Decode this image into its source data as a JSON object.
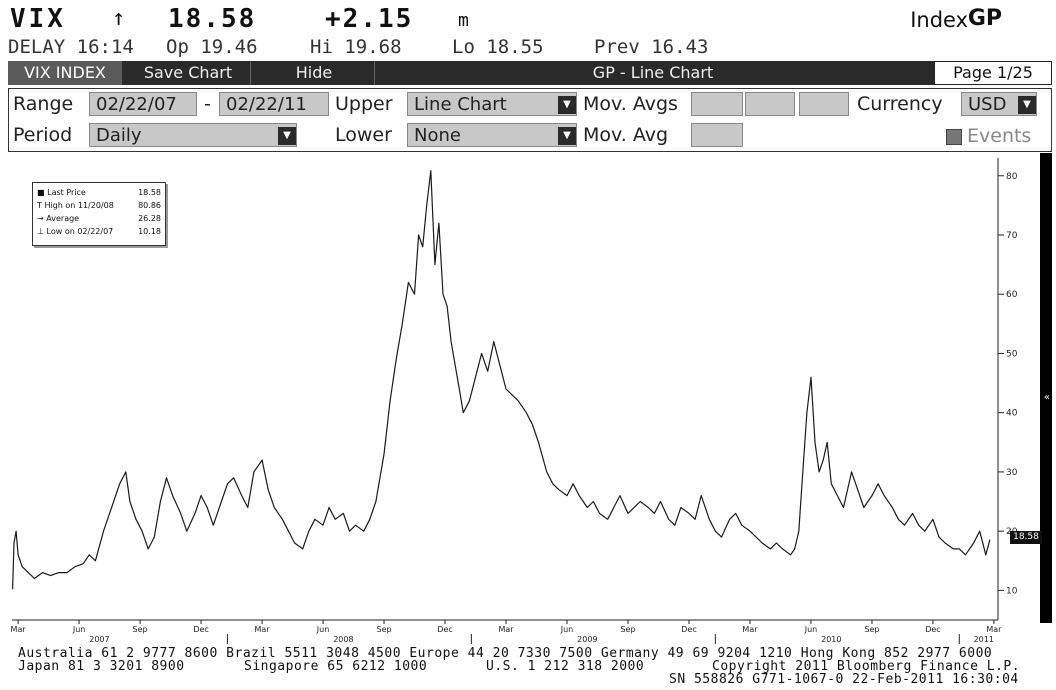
{
  "header": {
    "ticker": "VIX",
    "arrow": "↑",
    "last": "18.58",
    "change": "+2.15",
    "m_flag": "m",
    "index_label": "Index",
    "index_code": "GP",
    "delay": "DELAY 16:14",
    "open": "Op 19.46",
    "high": "Hi 19.68",
    "low": "Lo 18.55",
    "prev": "Prev 16.43"
  },
  "toolbar": {
    "security": "VIX INDEX",
    "save_chart": "Save Chart",
    "hide": "Hide",
    "title": "GP - Line Chart",
    "page": "Page 1/25"
  },
  "controls": {
    "range_label": "Range",
    "range_start": "02/22/07",
    "range_dash": "-",
    "range_end": "02/22/11",
    "upper_label": "Upper",
    "upper_value": "Line Chart",
    "movavgs_label": "Mov. Avgs",
    "currency_label": "Currency",
    "currency_value": "USD",
    "period_label": "Period",
    "period_value": "Daily",
    "lower_label": "Lower",
    "lower_value": "None",
    "movavg_label": "Mov. Avg",
    "events_label": "Events"
  },
  "legend": [
    {
      "label": "Last Price",
      "value": "18.58",
      "icon": "square-icon"
    },
    {
      "label": "High on 11/20/08",
      "value": "80.86",
      "icon": "high-marker-icon"
    },
    {
      "label": "Average",
      "value": "26.28",
      "icon": "average-marker-icon"
    },
    {
      "label": "Low on 02/22/07",
      "value": "10.18",
      "icon": "low-marker-icon"
    }
  ],
  "last_price_tag": "18.58",
  "collapse_glyph": "«",
  "footer": {
    "line1": "Australia 61 2 9777 8600 Brazil 5511 3048 4500 Europe 44 20 7330 7500 Germany 49 69 9204 1210 Hong Kong 852 2977 6000",
    "line2_left": "Japan 81 3 3201 8900",
    "line2_mid": "Singapore 65 6212 1000",
    "line2_us": "U.S. 1 212 318 2000",
    "line2_right": "Copyright 2011 Bloomberg Finance L.P.",
    "line3": "SN 558826 G771-1067-0 22-Feb-2011 16:30:04"
  },
  "colors": {
    "line": "#1a1a1a",
    "toolbar_bg": "#2a2a2a",
    "field_bg": "#c8c8c8"
  },
  "chart_data": {
    "type": "line",
    "title": "",
    "xlabel": "",
    "ylabel": "",
    "ylim": [
      5,
      83
    ],
    "yticks": [
      10,
      20,
      30,
      40,
      50,
      60,
      70,
      80
    ],
    "y_axis_side": "right",
    "grid": false,
    "legend_position": "top-left",
    "xtick_labels": [
      "Mar",
      "Jun",
      "Sep",
      "Dec",
      "Mar",
      "Jun",
      "Sep",
      "Dec",
      "Mar",
      "Jun",
      "Sep",
      "Dec",
      "Mar",
      "Jun",
      "Sep",
      "Dec",
      "Mar"
    ],
    "xtick_months": [
      0,
      3,
      6,
      9,
      12,
      15,
      18,
      21,
      24,
      27,
      30,
      33,
      36,
      39,
      42,
      45,
      48
    ],
    "year_labels": [
      {
        "label": "2007",
        "month": 4
      },
      {
        "label": "2008",
        "month": 16
      },
      {
        "label": "2009",
        "month": 28
      },
      {
        "label": "2010",
        "month": 40
      },
      {
        "label": "2011",
        "month": 47.5
      }
    ],
    "x_range_months": [
      -0.3,
      48.2
    ],
    "series": [
      {
        "name": "",
        "x_months": [
          -0.27,
          -0.2,
          -0.1,
          0.0,
          0.2,
          0.5,
          0.8,
          1.2,
          1.6,
          2.0,
          2.4,
          2.8,
          3.2,
          3.5,
          3.8,
          4.2,
          4.6,
          5.0,
          5.3,
          5.5,
          5.8,
          6.1,
          6.4,
          6.7,
          7.0,
          7.3,
          7.6,
          8.0,
          8.3,
          8.7,
          9.0,
          9.3,
          9.6,
          10.0,
          10.3,
          10.6,
          11.0,
          11.3,
          11.6,
          12.0,
          12.3,
          12.6,
          13.0,
          13.3,
          13.6,
          14.0,
          14.3,
          14.6,
          15.0,
          15.3,
          15.6,
          16.0,
          16.3,
          16.6,
          17.0,
          17.3,
          17.6,
          18.0,
          18.3,
          18.6,
          18.9,
          19.2,
          19.5,
          19.7,
          19.9,
          20.1,
          20.3,
          20.5,
          20.7,
          20.9,
          21.1,
          21.3,
          21.5,
          21.7,
          21.9,
          22.2,
          22.5,
          22.8,
          23.1,
          23.4,
          23.7,
          24.0,
          24.3,
          24.6,
          25.0,
          25.3,
          25.6,
          26.0,
          26.3,
          26.6,
          27.0,
          27.3,
          27.6,
          28.0,
          28.3,
          28.6,
          29.0,
          29.3,
          29.6,
          30.0,
          30.3,
          30.6,
          31.0,
          31.3,
          31.6,
          32.0,
          32.3,
          32.6,
          33.0,
          33.3,
          33.6,
          34.0,
          34.3,
          34.6,
          35.0,
          35.3,
          35.6,
          36.0,
          36.3,
          36.6,
          37.0,
          37.3,
          37.6,
          38.0,
          38.2,
          38.4,
          38.6,
          38.8,
          39.0,
          39.2,
          39.4,
          39.6,
          39.8,
          40.0,
          40.3,
          40.6,
          41.0,
          41.3,
          41.6,
          42.0,
          42.3,
          42.6,
          43.0,
          43.3,
          43.6,
          44.0,
          44.3,
          44.6,
          45.0,
          45.3,
          45.6,
          46.0,
          46.3,
          46.6,
          47.0,
          47.3,
          47.6,
          47.8
        ],
        "values": [
          10.18,
          18,
          20,
          16,
          14,
          13,
          12,
          13,
          12.5,
          13,
          13,
          14,
          14.5,
          16,
          15,
          20,
          24,
          28,
          30,
          25,
          22,
          20,
          17,
          19,
          25,
          29,
          26,
          23,
          20,
          23,
          26,
          24,
          21,
          25,
          28,
          29,
          26,
          24,
          30,
          32,
          27,
          24,
          22,
          20,
          18,
          17,
          20,
          22,
          21,
          24,
          22,
          23,
          20,
          21,
          20,
          22,
          25,
          33,
          42,
          49,
          55,
          62,
          60,
          70,
          68,
          75,
          80.86,
          65,
          72,
          60,
          58,
          52,
          48,
          44,
          40,
          42,
          46,
          50,
          47,
          52,
          48,
          44,
          43,
          42,
          40,
          38,
          35,
          30,
          28,
          27,
          26,
          28,
          26,
          24,
          25,
          23,
          22,
          24,
          26,
          23,
          24,
          25,
          24,
          23,
          25,
          22,
          21,
          24,
          23,
          22,
          26,
          22,
          20,
          19,
          22,
          23,
          21,
          20,
          19,
          18,
          17,
          18,
          17,
          16,
          17,
          20,
          30,
          40,
          46,
          35,
          30,
          32,
          35,
          28,
          26,
          24,
          30,
          27,
          24,
          26,
          28,
          26,
          24,
          22,
          21,
          23,
          21,
          20,
          22,
          19,
          18,
          17,
          17,
          16,
          18,
          20,
          16,
          18.58
        ]
      }
    ]
  }
}
